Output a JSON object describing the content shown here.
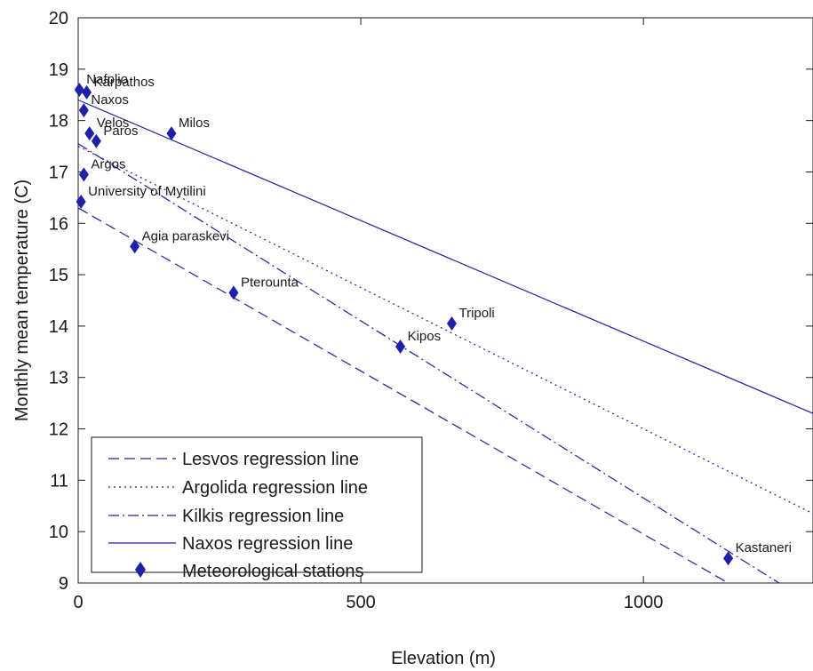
{
  "chart_data": {
    "type": "scatter",
    "title": "",
    "xlabel": "Elevation (m)",
    "ylabel": "Monthly mean temperature (C)",
    "xlim": [
      0,
      1300
    ],
    "ylim": [
      9,
      20
    ],
    "xticks": [
      0,
      500,
      1000
    ],
    "yticks": [
      9,
      10,
      11,
      12,
      13,
      14,
      15,
      16,
      17,
      18,
      19,
      20
    ],
    "grid": false,
    "legend_position": "bottom-left",
    "color": "#1f1fa8",
    "stations": [
      {
        "name": "Nafplio",
        "elevation": 2,
        "temperature": 18.6
      },
      {
        "name": "Karpathos",
        "elevation": 15,
        "temperature": 18.55
      },
      {
        "name": "Naxos",
        "elevation": 10,
        "temperature": 18.2
      },
      {
        "name": "Velos",
        "elevation": 20,
        "temperature": 17.75
      },
      {
        "name": "Paros",
        "elevation": 32,
        "temperature": 17.6
      },
      {
        "name": "Milos",
        "elevation": 165,
        "temperature": 17.75
      },
      {
        "name": "Argos",
        "elevation": 10,
        "temperature": 16.95
      },
      {
        "name": "University of Mytilini",
        "elevation": 5,
        "temperature": 16.42
      },
      {
        "name": "Agia paraskevi",
        "elevation": 100,
        "temperature": 15.55
      },
      {
        "name": "Pterounta",
        "elevation": 275,
        "temperature": 14.65
      },
      {
        "name": "Tripoli",
        "elevation": 661,
        "temperature": 14.05
      },
      {
        "name": "Kipos",
        "elevation": 570,
        "temperature": 13.6
      },
      {
        "name": "Kastaneri",
        "elevation": 1150,
        "temperature": 9.48
      }
    ],
    "series": [
      {
        "name": "Lesvos regression line",
        "style": "dashed",
        "x": [
          0,
          1150
        ],
        "y": [
          16.3,
          9.0
        ]
      },
      {
        "name": "Argolida regression line",
        "style": "dotted",
        "x": [
          0,
          1300
        ],
        "y": [
          17.5,
          10.35
        ]
      },
      {
        "name": "Kilkis regression line",
        "style": "dashdot",
        "x": [
          0,
          1240
        ],
        "y": [
          17.55,
          9.0
        ]
      },
      {
        "name": "Naxos regression line",
        "style": "solid",
        "x": [
          0,
          1300
        ],
        "y": [
          18.4,
          12.3
        ]
      }
    ],
    "legend_entries": [
      "Lesvos regression line",
      "Argolida regression line",
      "Kilkis regression line",
      "Naxos regression line",
      "Meteorological stations"
    ]
  }
}
